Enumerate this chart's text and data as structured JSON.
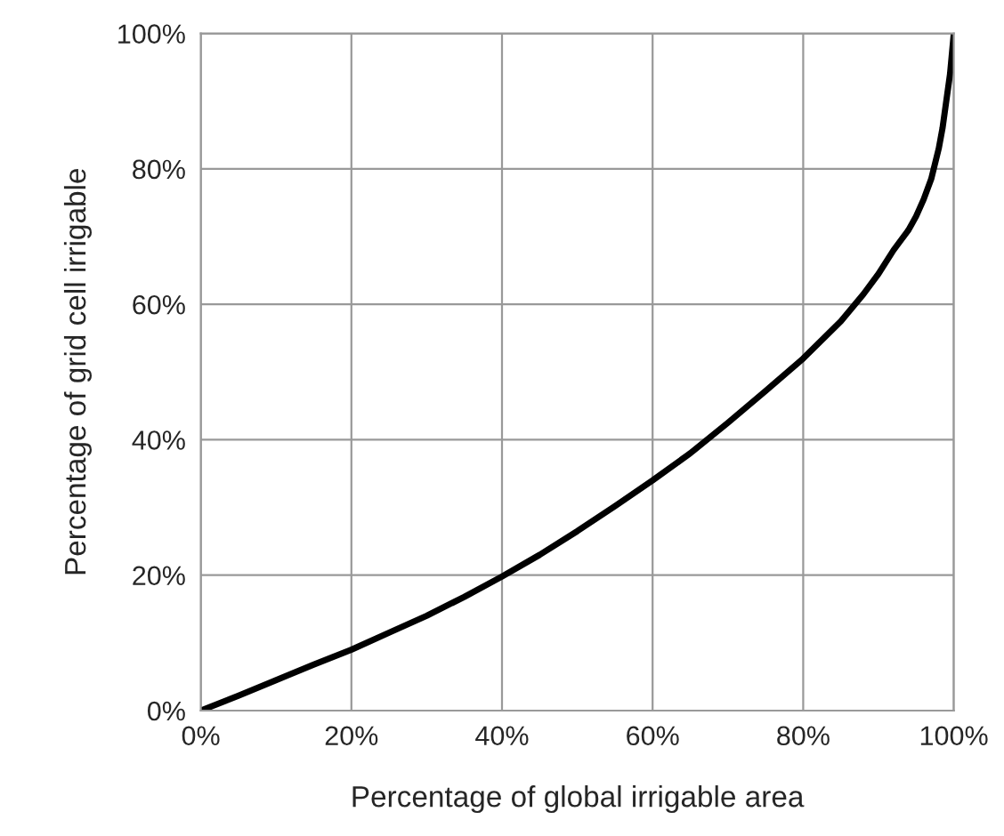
{
  "chart_data": {
    "type": "line",
    "xlabel": "Percentage of global irrigable area",
    "ylabel": "Percentage of grid cell irrigable",
    "series": [
      {
        "color": "#000000",
        "x": [
          0,
          5,
          10,
          15,
          20,
          25,
          30,
          35,
          40,
          45,
          50,
          55,
          60,
          65,
          70,
          75,
          80,
          85,
          88,
          90,
          92,
          94,
          95,
          96,
          97,
          98,
          98.5,
          99,
          99.5,
          100
        ],
        "values": [
          0,
          2.2,
          4.5,
          6.8,
          9,
          11.5,
          14,
          16.8,
          19.8,
          23,
          26.5,
          30.2,
          34,
          38,
          42.5,
          47.2,
          52,
          57.5,
          61.5,
          64.5,
          68,
          71,
          73,
          75.5,
          78.5,
          83,
          86,
          90,
          94,
          100
        ]
      }
    ],
    "xlim": [
      0,
      100
    ],
    "ylim": [
      0,
      100
    ],
    "xticks": [
      {
        "value": 0,
        "label": "0%"
      },
      {
        "value": 20,
        "label": "20%"
      },
      {
        "value": 40,
        "label": "40%"
      },
      {
        "value": 60,
        "label": "60%"
      },
      {
        "value": 80,
        "label": "80%"
      },
      {
        "value": 100,
        "label": "100%"
      }
    ],
    "yticks": [
      {
        "value": 0,
        "label": "0%"
      },
      {
        "value": 20,
        "label": "20%"
      },
      {
        "value": 40,
        "label": "40%"
      },
      {
        "value": 60,
        "label": "60%"
      },
      {
        "value": 80,
        "label": "80%"
      },
      {
        "value": 100,
        "label": "100%"
      }
    ],
    "grid": true,
    "marker": "none",
    "line_style": "solid"
  }
}
